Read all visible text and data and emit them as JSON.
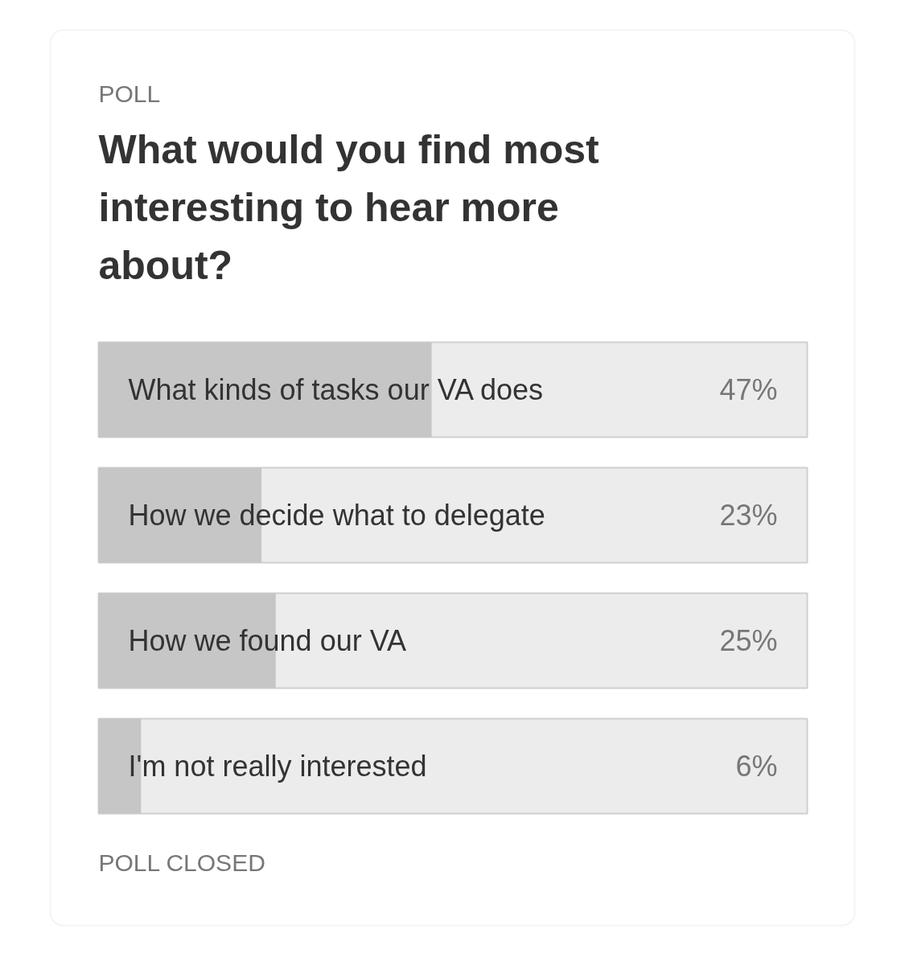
{
  "chart_data": {
    "type": "bar",
    "orientation": "horizontal",
    "subtitle": "POLL",
    "title": "What would you find most interesting to hear more about?",
    "categories": [
      "What kinds of tasks our VA does",
      "How we decide what to delegate",
      "How we found our VA",
      "I'm not really interested"
    ],
    "values": [
      47,
      23,
      25,
      6
    ],
    "value_labels": [
      "47%",
      "23%",
      "25%",
      "6%"
    ],
    "color": "#c6c6c6",
    "xlim": [
      0,
      100
    ],
    "annotations": [
      "POLL CLOSED"
    ]
  }
}
